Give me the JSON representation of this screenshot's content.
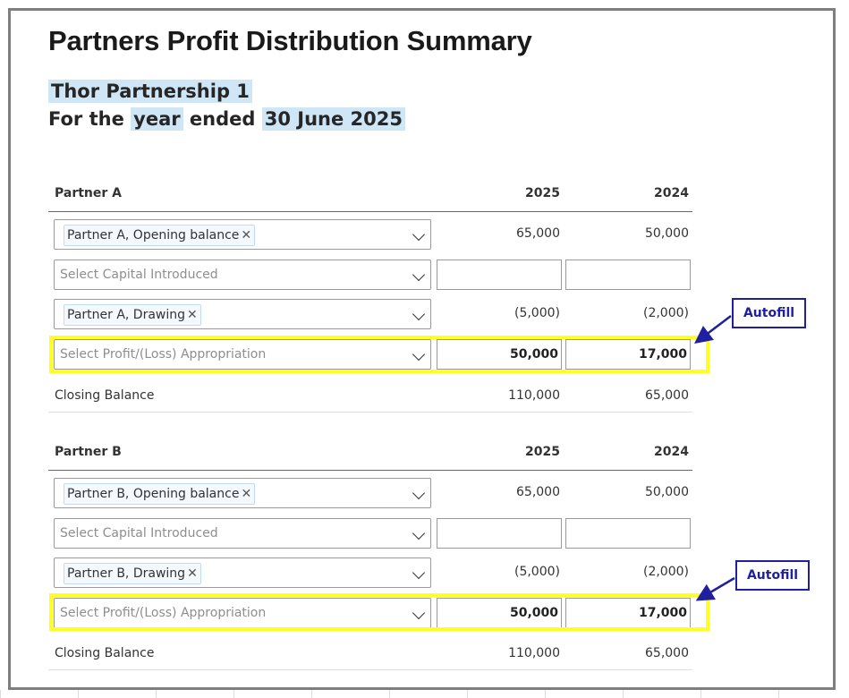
{
  "title": "Partners Profit Distribution Summary",
  "entity": "Thor Partnership 1",
  "period": {
    "prefix": "For the",
    "unit": "year",
    "mid": "ended",
    "date": "30 June 2025"
  },
  "sections": [
    {
      "partner": "Partner A",
      "year1": "2025",
      "year2": "2024",
      "opening": {
        "chip": "Partner A, Opening balance",
        "v1": "65,000",
        "v2": "50,000"
      },
      "capital": {
        "placeholder": "Select Capital Introduced",
        "v1": "",
        "v2": ""
      },
      "drawing": {
        "chip": "Partner A, Drawing",
        "v1": "(5,000)",
        "v2": "(2,000)"
      },
      "appropriation": {
        "placeholder": "Select Profit/(Loss) Appropriation",
        "v1": "50,000",
        "v2": "17,000"
      },
      "closing": {
        "label": "Closing Balance",
        "v1": "110,000",
        "v2": "65,000"
      }
    },
    {
      "partner": "Partner B",
      "year1": "2025",
      "year2": "2024",
      "opening": {
        "chip": "Partner B, Opening balance",
        "v1": "65,000",
        "v2": "50,000"
      },
      "capital": {
        "placeholder": "Select Capital Introduced",
        "v1": "",
        "v2": ""
      },
      "drawing": {
        "chip": "Partner B, Drawing",
        "v1": "(5,000)",
        "v2": "(2,000)"
      },
      "appropriation": {
        "placeholder": "Select Profit/(Loss) Appropriation",
        "v1": "50,000",
        "v2": "17,000"
      },
      "closing": {
        "label": "Closing Balance",
        "v1": "110,000",
        "v2": "65,000"
      }
    }
  ],
  "callouts": [
    "Autofill",
    "Autofill"
  ],
  "icons": {
    "remove": "close-icon",
    "dropdown": "chevron-down-icon"
  },
  "colors": {
    "highlight": "#ffff20",
    "callout": "#1f1fa0",
    "tag_highlight": "#cfe6f7"
  }
}
